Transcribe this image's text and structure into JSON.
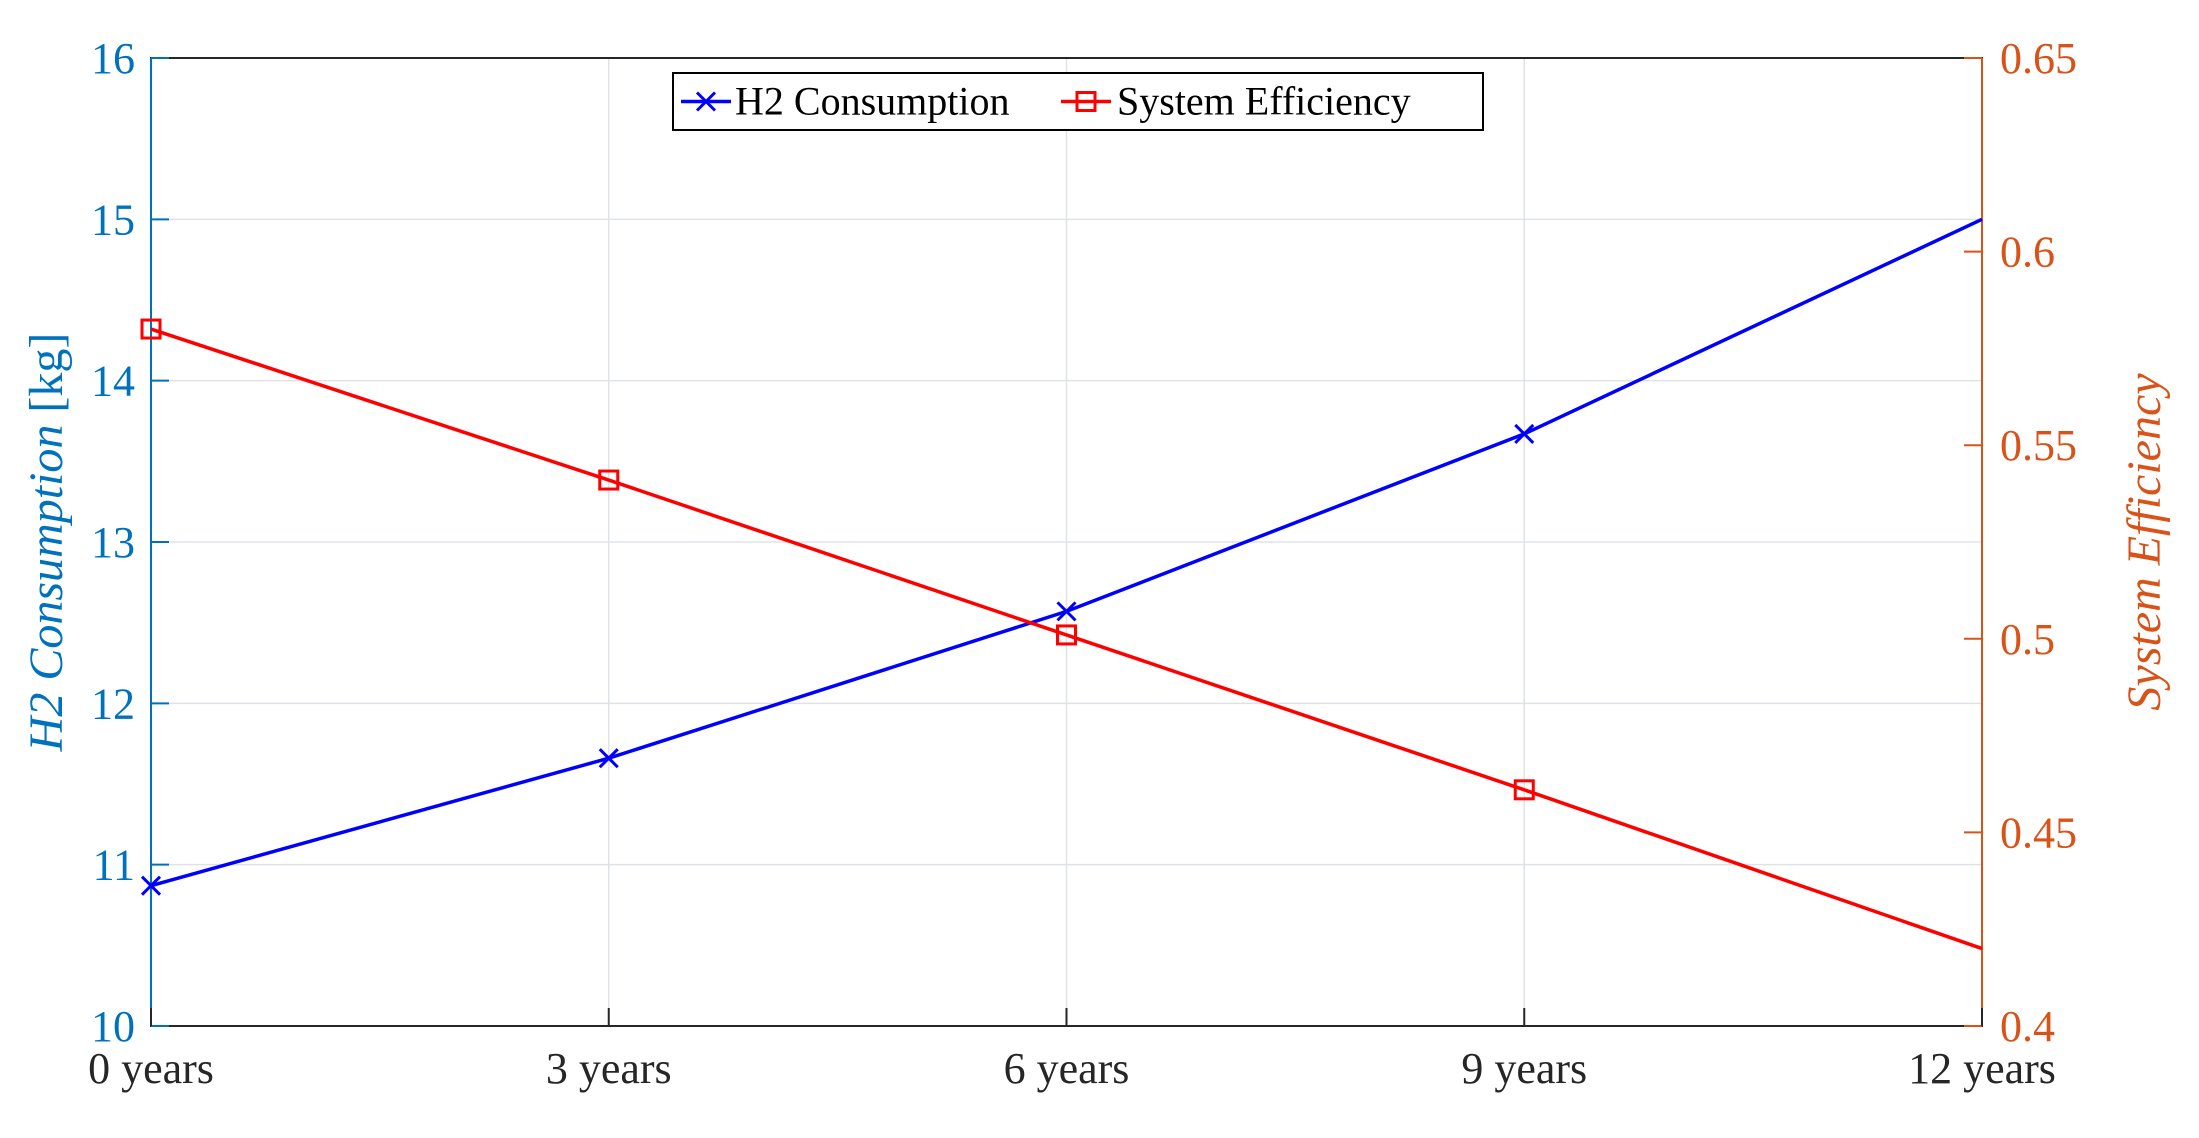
{
  "chart_data": {
    "type": "line",
    "categories": [
      "0 years",
      "3 years",
      "6 years",
      "9 years",
      "12 years"
    ],
    "series": [
      {
        "name": "H2 Consumption",
        "axis": "left",
        "color": "#0000ff",
        "marker": "x",
        "values": [
          10.87,
          11.66,
          12.57,
          13.67,
          15.0
        ]
      },
      {
        "name": "System Efficiency",
        "axis": "right",
        "color": "#ff0000",
        "marker": "square",
        "values": [
          0.58,
          0.541,
          0.501,
          0.461,
          0.42
        ]
      }
    ],
    "left_axis": {
      "label_main": "H2 Consumption",
      "label_unit": " [kg]",
      "ylim": [
        10,
        16
      ],
      "ticks": [
        "10",
        "11",
        "12",
        "13",
        "14",
        "15",
        "16"
      ],
      "color": "#0072bd"
    },
    "right_axis": {
      "label": "System Efficiency",
      "ylim": [
        0.4,
        0.65
      ],
      "ticks": [
        "0.4",
        "0.45",
        "0.5",
        "0.55",
        "0.6",
        "0.65"
      ],
      "color": "#d95319"
    },
    "grid": true,
    "legend": {
      "placement": "top-center",
      "entries": [
        "H2 Consumption",
        "System Efficiency"
      ]
    }
  }
}
